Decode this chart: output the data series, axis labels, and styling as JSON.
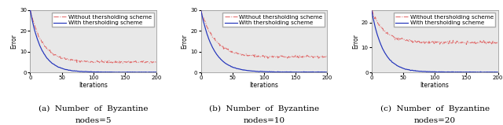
{
  "n_iter": 201,
  "xlabel": "Iterations",
  "ylabel": "Error",
  "legend_without": "Without thersholding scheme",
  "legend_with": "With thersholding scheme",
  "color_without": "#e06060",
  "color_with": "#2233bb",
  "subplots": [
    {
      "label_line1": "(a)  Number  of  Byzantine",
      "label_line2": "nodes=5",
      "y_start": 30,
      "y_plateau_without": 5.0,
      "y_end_with": 0.15,
      "decay_without": 20,
      "decay_with": 18,
      "ylim": [
        0,
        30
      ],
      "yticks": [
        0,
        10,
        20,
        30
      ],
      "xticks": [
        0,
        50,
        100,
        150,
        200
      ],
      "xlim": [
        0,
        200
      ]
    },
    {
      "label_line1": "(b)  Number  of  Byzantine",
      "label_line2": "nodes=10",
      "y_start": 30,
      "y_plateau_without": 7.5,
      "y_end_with": 0.2,
      "decay_without": 22,
      "decay_with": 20,
      "ylim": [
        0,
        30
      ],
      "yticks": [
        0,
        10,
        20,
        30
      ],
      "xticks": [
        0,
        50,
        100,
        150,
        200
      ],
      "xlim": [
        0,
        200
      ]
    },
    {
      "label_line1": "(c)  Number  of  Byzantine",
      "label_line2": "nodes=20",
      "y_start": 25,
      "y_plateau_without": 12.0,
      "y_end_with": 0.15,
      "decay_without": 20,
      "decay_with": 18,
      "ylim": [
        0,
        25
      ],
      "yticks": [
        0,
        10,
        20
      ],
      "xticks": [
        0,
        50,
        100,
        150,
        200
      ],
      "xlim": [
        0,
        200
      ]
    }
  ],
  "bg_color": "#e8e8e8",
  "legend_fontsize": 5.2,
  "axis_fontsize": 5.5,
  "tick_fontsize": 5.0,
  "caption_fontsize": 7.5,
  "linewidth_without": 0.7,
  "linewidth_with": 0.85
}
